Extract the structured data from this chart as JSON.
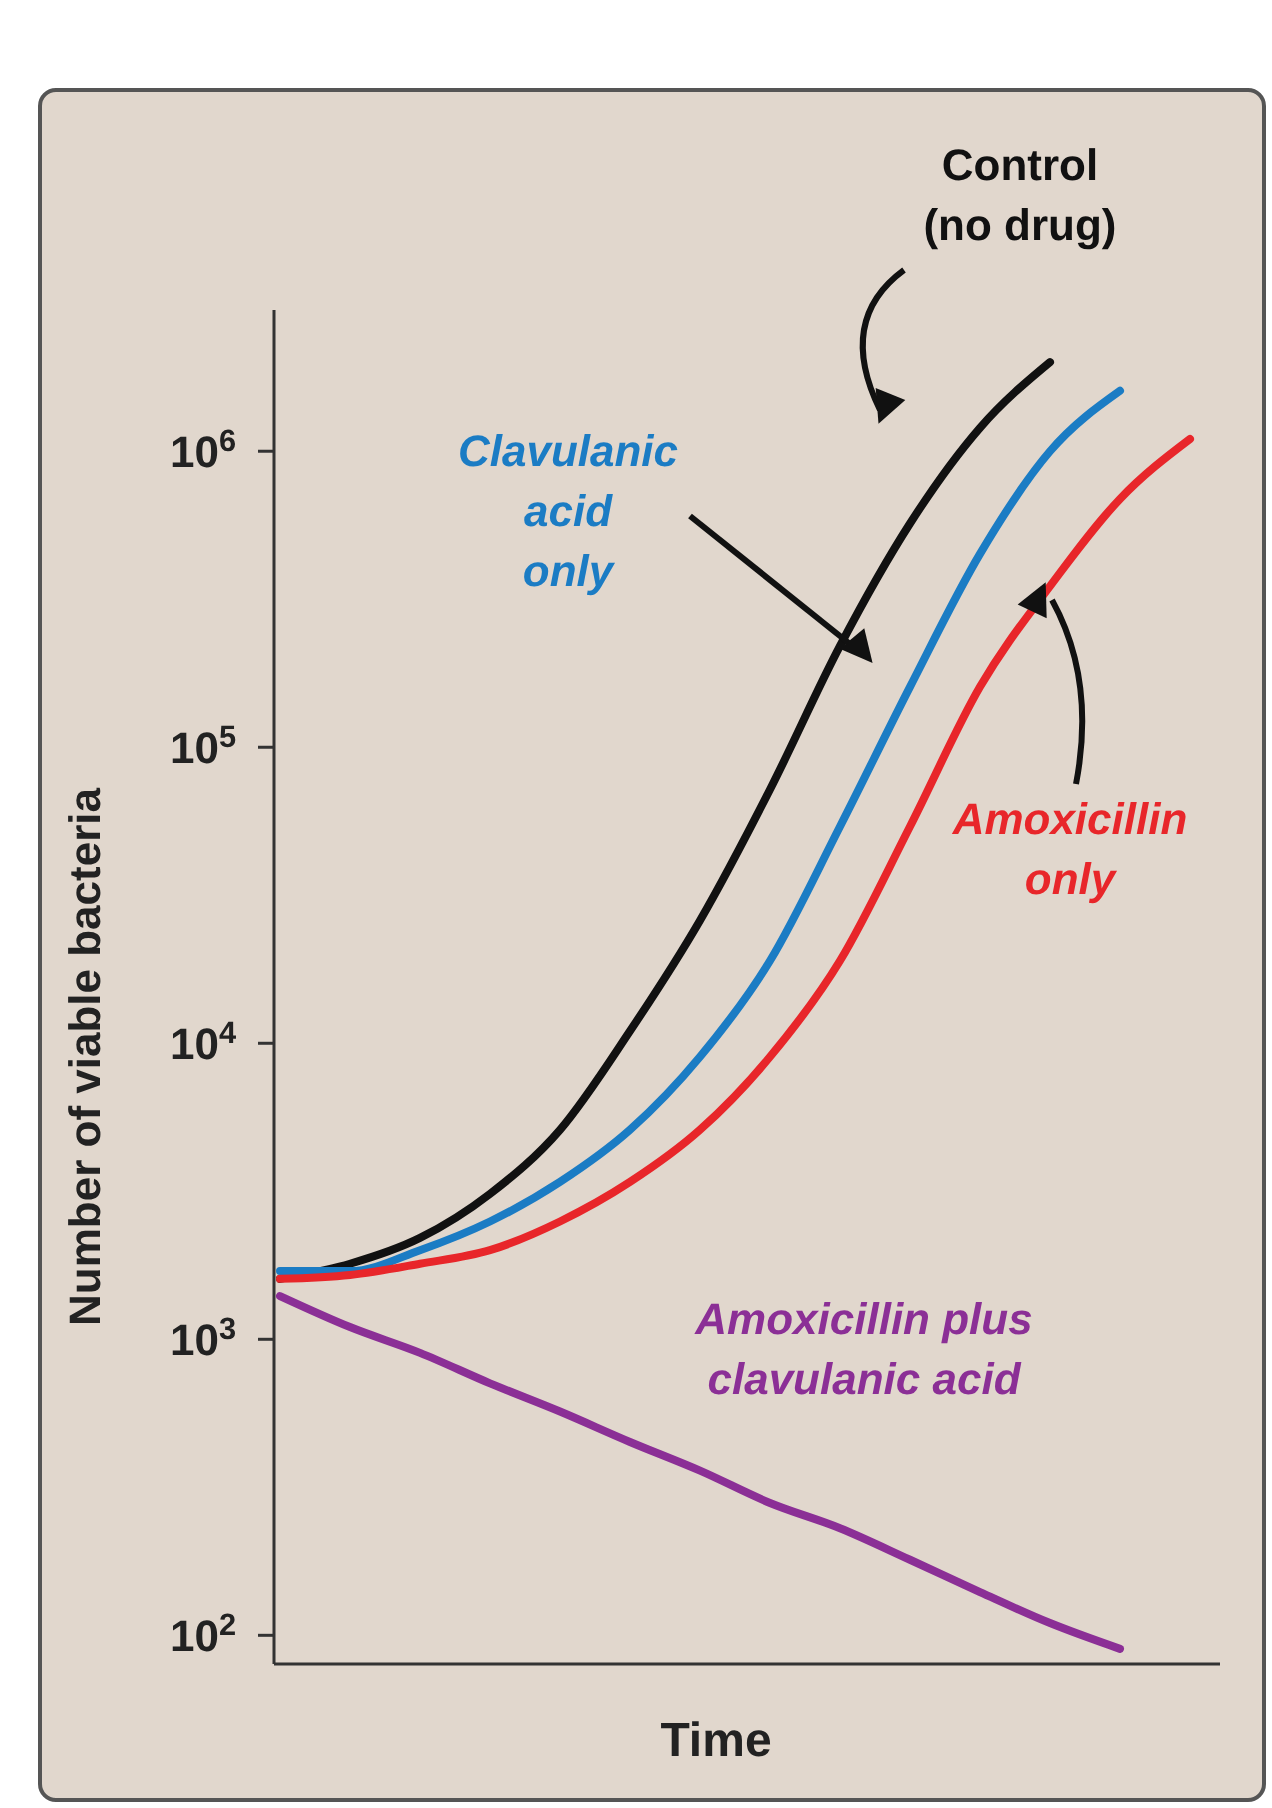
{
  "chart_data": {
    "type": "line",
    "xlabel": "Time",
    "ylabel": "Number of viable bacteria",
    "log": "y",
    "ylim": [
      80,
      3000000
    ],
    "yticks": [
      {
        "value": 100,
        "label": "10$^{2}$"
      },
      {
        "value": 1000,
        "label": "10$^{3}$"
      },
      {
        "value": 10000,
        "label": "10$^{4}$"
      },
      {
        "value": 100000,
        "label": "10$^{5}$"
      },
      {
        "value": 1000000,
        "label": "10$^{6}$"
      }
    ],
    "categories": [
      null,
      null,
      null,
      null,
      null,
      null,
      null,
      null,
      null,
      null,
      null,
      null,
      null,
      null
    ],
    "grid": false,
    "marker": "none",
    "line_style": "solid",
    "series": [
      {
        "name": "Control (no drug)",
        "color": "#111111",
        "values": [
          1600,
          1800,
          2200,
          3100,
          5100,
          11000,
          26000,
          72000,
          220000,
          570000,
          1200000,
          2000000,
          null,
          null
        ]
      },
      {
        "name": "Clavulanic acid only",
        "color": "#1b7cc4",
        "values": [
          1700,
          1700,
          2000,
          2500,
          3400,
          5100,
          9000,
          19000,
          54000,
          160000,
          450000,
          1000000,
          1600000,
          null
        ]
      },
      {
        "name": "Amoxicillin only",
        "color": "#e8262a",
        "values": [
          1600,
          1650,
          1800,
          2000,
          2500,
          3400,
          5100,
          9000,
          19000,
          54000,
          160000,
          350000,
          690000,
          1100000
        ]
      },
      {
        "name": "Amoxicillin plus clavulanic acid",
        "color": "#8b2f96",
        "values": [
          1400,
          1100,
          900,
          710,
          570,
          450,
          360,
          280,
          230,
          180,
          140,
          110,
          90,
          null
        ]
      }
    ]
  }
}
